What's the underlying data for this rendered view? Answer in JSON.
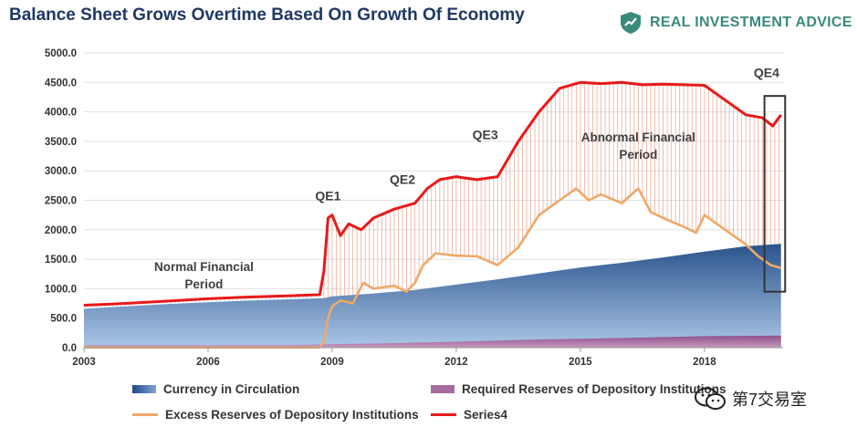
{
  "header": {
    "title": "Balance Sheet Grows Overtime Based On Growth Of Economy",
    "brand": "REAL INVESTMENT ADVICE"
  },
  "watermark": {
    "text": "第7交易室"
  },
  "chart_data": {
    "type": "area",
    "title": "Balance Sheet Grows Overtime Based On Growth Of Economy",
    "xlabel": "",
    "ylabel": "",
    "x_ticks": [
      "2003",
      "2006",
      "2009",
      "2012",
      "2015",
      "2018"
    ],
    "y_ticks": [
      "0.0",
      "500.0",
      "1000.0",
      "1500.0",
      "2000.0",
      "2500.0",
      "3000.0",
      "3500.0",
      "4000.0",
      "4500.0",
      "5000.0"
    ],
    "xlim": [
      2003.0,
      2019.9
    ],
    "ylim": [
      0,
      5000
    ],
    "grid": true,
    "legend_position": "bottom",
    "series": [
      {
        "name": "Currency in Circulation",
        "style": "area",
        "color": "#3d6aa5",
        "points": [
          [
            2003.0,
            660
          ],
          [
            2004.0,
            700
          ],
          [
            2005.0,
            740
          ],
          [
            2006.0,
            770
          ],
          [
            2007.0,
            800
          ],
          [
            2008.0,
            820
          ],
          [
            2008.8,
            840
          ],
          [
            2009.0,
            870
          ],
          [
            2010.0,
            920
          ],
          [
            2011.0,
            980
          ],
          [
            2012.0,
            1070
          ],
          [
            2013.0,
            1160
          ],
          [
            2014.0,
            1260
          ],
          [
            2015.0,
            1360
          ],
          [
            2016.0,
            1440
          ],
          [
            2017.0,
            1530
          ],
          [
            2018.0,
            1630
          ],
          [
            2019.0,
            1720
          ],
          [
            2019.6,
            1750
          ],
          [
            2019.85,
            1760
          ]
        ]
      },
      {
        "name": "Required Reserves of Depository Institutions",
        "style": "area",
        "color": "#a86ca0",
        "points": [
          [
            2003.0,
            40
          ],
          [
            2008.0,
            45
          ],
          [
            2009.0,
            60
          ],
          [
            2010.0,
            70
          ],
          [
            2011.0,
            85
          ],
          [
            2012.0,
            100
          ],
          [
            2013.0,
            120
          ],
          [
            2014.0,
            140
          ],
          [
            2015.0,
            150
          ],
          [
            2016.0,
            165
          ],
          [
            2017.0,
            180
          ],
          [
            2018.0,
            195
          ],
          [
            2019.0,
            200
          ],
          [
            2019.85,
            205
          ]
        ]
      },
      {
        "name": "Excess Reserves of Depository Institutions",
        "style": "line",
        "color": "#f0a868",
        "points": [
          [
            2003.0,
            2
          ],
          [
            2008.0,
            2
          ],
          [
            2008.7,
            2
          ],
          [
            2008.8,
            100
          ],
          [
            2008.9,
            500
          ],
          [
            2009.0,
            700
          ],
          [
            2009.2,
            800
          ],
          [
            2009.5,
            750
          ],
          [
            2009.75,
            1100
          ],
          [
            2010.0,
            1000
          ],
          [
            2010.5,
            1050
          ],
          [
            2010.8,
            950
          ],
          [
            2011.0,
            1100
          ],
          [
            2011.2,
            1400
          ],
          [
            2011.5,
            1600
          ],
          [
            2012.0,
            1560
          ],
          [
            2012.5,
            1550
          ],
          [
            2013.0,
            1400
          ],
          [
            2013.5,
            1700
          ],
          [
            2014.0,
            2250
          ],
          [
            2014.5,
            2500
          ],
          [
            2014.9,
            2700
          ],
          [
            2015.2,
            2500
          ],
          [
            2015.5,
            2600
          ],
          [
            2016.0,
            2450
          ],
          [
            2016.4,
            2700
          ],
          [
            2016.7,
            2300
          ],
          [
            2017.0,
            2200
          ],
          [
            2017.5,
            2050
          ],
          [
            2017.8,
            1950
          ],
          [
            2018.0,
            2250
          ],
          [
            2018.5,
            2000
          ],
          [
            2018.8,
            1850
          ],
          [
            2019.0,
            1750
          ],
          [
            2019.3,
            1550
          ],
          [
            2019.6,
            1400
          ],
          [
            2019.85,
            1350
          ]
        ]
      },
      {
        "name": "Series4",
        "style": "line",
        "color": "#e8191a",
        "points": [
          [
            2003.0,
            720
          ],
          [
            2004.0,
            750
          ],
          [
            2005.0,
            790
          ],
          [
            2006.0,
            830
          ],
          [
            2007.0,
            860
          ],
          [
            2008.0,
            880
          ],
          [
            2008.7,
            900
          ],
          [
            2008.8,
            1300
          ],
          [
            2008.9,
            2200
          ],
          [
            2009.0,
            2250
          ],
          [
            2009.2,
            1900
          ],
          [
            2009.4,
            2100
          ],
          [
            2009.7,
            2000
          ],
          [
            2010.0,
            2200
          ],
          [
            2010.5,
            2350
          ],
          [
            2011.0,
            2450
          ],
          [
            2011.3,
            2700
          ],
          [
            2011.6,
            2850
          ],
          [
            2012.0,
            2900
          ],
          [
            2012.5,
            2850
          ],
          [
            2013.0,
            2900
          ],
          [
            2013.5,
            3500
          ],
          [
            2014.0,
            4000
          ],
          [
            2014.5,
            4400
          ],
          [
            2015.0,
            4500
          ],
          [
            2015.5,
            4480
          ],
          [
            2016.0,
            4500
          ],
          [
            2016.5,
            4460
          ],
          [
            2017.0,
            4470
          ],
          [
            2017.5,
            4460
          ],
          [
            2018.0,
            4450
          ],
          [
            2018.5,
            4200
          ],
          [
            2019.0,
            3950
          ],
          [
            2019.4,
            3900
          ],
          [
            2019.65,
            3760
          ],
          [
            2019.85,
            3950
          ]
        ]
      }
    ],
    "annotations": [
      {
        "text": "QE1",
        "x": 2008.9,
        "y": 2500
      },
      {
        "text": "QE2",
        "x": 2010.7,
        "y": 2780
      },
      {
        "text": "QE3",
        "x": 2012.7,
        "y": 3540
      },
      {
        "text": "QE4",
        "x": 2019.5,
        "y": 4590
      },
      {
        "text": "Normal Financial\nPeriod",
        "x": 2005.9,
        "y": 1300
      },
      {
        "text": "Abnormal Financial\nPeriod",
        "x": 2016.4,
        "y": 3500
      }
    ]
  }
}
